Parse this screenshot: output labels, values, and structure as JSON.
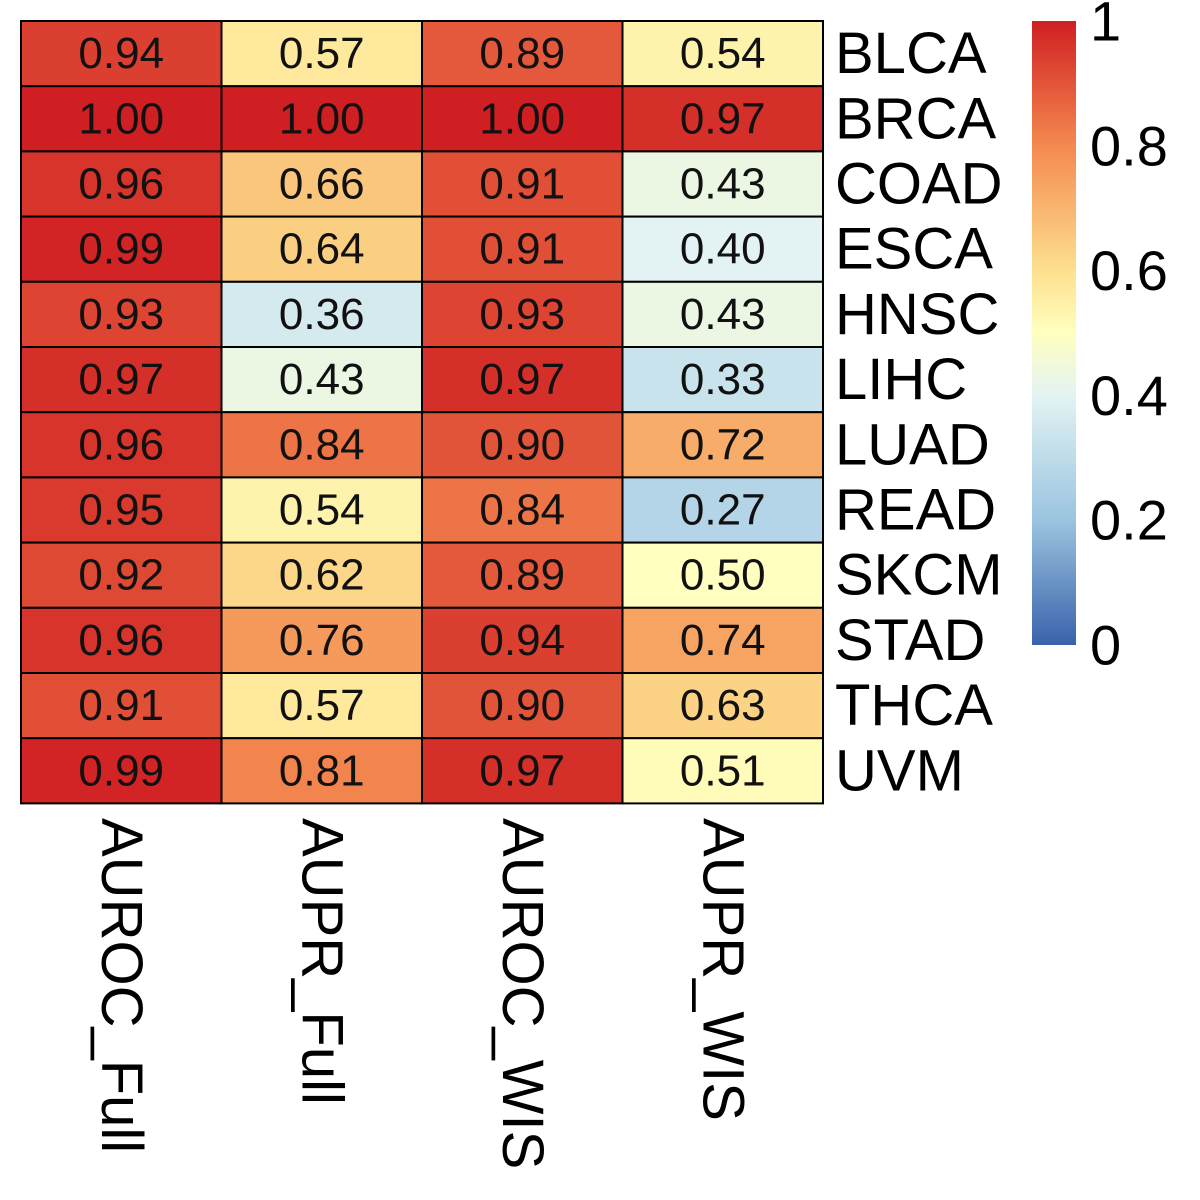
{
  "chart_data": {
    "type": "heatmap",
    "columns": [
      "AUROC_Full",
      "AUPR_Full",
      "AUROC_WIS",
      "AUPR_WIS"
    ],
    "rows": [
      "BLCA",
      "BRCA",
      "COAD",
      "ESCA",
      "HNSC",
      "LIHC",
      "LUAD",
      "READ",
      "SKCM",
      "STAD",
      "THCA",
      "UVM"
    ],
    "values": [
      [
        0.94,
        0.57,
        0.89,
        0.54
      ],
      [
        1.0,
        1.0,
        1.0,
        0.97
      ],
      [
        0.96,
        0.66,
        0.91,
        0.43
      ],
      [
        0.99,
        0.64,
        0.91,
        0.4
      ],
      [
        0.93,
        0.36,
        0.93,
        0.43
      ],
      [
        0.97,
        0.43,
        0.97,
        0.33
      ],
      [
        0.96,
        0.84,
        0.9,
        0.72
      ],
      [
        0.95,
        0.54,
        0.84,
        0.27
      ],
      [
        0.92,
        0.62,
        0.89,
        0.5
      ],
      [
        0.96,
        0.76,
        0.94,
        0.74
      ],
      [
        0.91,
        0.57,
        0.9,
        0.63
      ],
      [
        0.99,
        0.81,
        0.97,
        0.51
      ]
    ],
    "value_labels": [
      [
        "0.94",
        "0.57",
        "0.89",
        "0.54"
      ],
      [
        "1.00",
        "1.00",
        "1.00",
        "0.97"
      ],
      [
        "0.96",
        "0.66",
        "0.91",
        "0.43"
      ],
      [
        "0.99",
        "0.64",
        "0.91",
        "0.40"
      ],
      [
        "0.93",
        "0.36",
        "0.93",
        "0.43"
      ],
      [
        "0.97",
        "0.43",
        "0.97",
        "0.33"
      ],
      [
        "0.96",
        "0.84",
        "0.90",
        "0.72"
      ],
      [
        "0.95",
        "0.54",
        "0.84",
        "0.27"
      ],
      [
        "0.92",
        "0.62",
        "0.89",
        "0.50"
      ],
      [
        "0.96",
        "0.76",
        "0.94",
        "0.74"
      ],
      [
        "0.91",
        "0.57",
        "0.90",
        "0.63"
      ],
      [
        "0.99",
        "0.81",
        "0.97",
        "0.51"
      ]
    ],
    "color_range": [
      0,
      1
    ],
    "colorbar_ticks": [
      {
        "value": 0,
        "label": "0"
      },
      {
        "value": 0.2,
        "label": "0.2"
      },
      {
        "value": 0.4,
        "label": "0.4"
      },
      {
        "value": 0.6,
        "label": "0.6"
      },
      {
        "value": 0.8,
        "label": "0.8"
      },
      {
        "value": 1,
        "label": "1"
      }
    ],
    "color_scale": [
      {
        "value": 0.0,
        "color": "#3A62AB"
      },
      {
        "value": 0.2,
        "color": "#9AC4E0"
      },
      {
        "value": 0.4,
        "color": "#E3F3F3"
      },
      {
        "value": 0.5,
        "color": "#FFFFBF"
      },
      {
        "value": 0.6,
        "color": "#FDE08F"
      },
      {
        "value": 0.8,
        "color": "#F4894F"
      },
      {
        "value": 1.0,
        "color": "#D01F22"
      }
    ],
    "grid_color": "#000000",
    "title": "",
    "xlabel": "",
    "ylabel": ""
  }
}
